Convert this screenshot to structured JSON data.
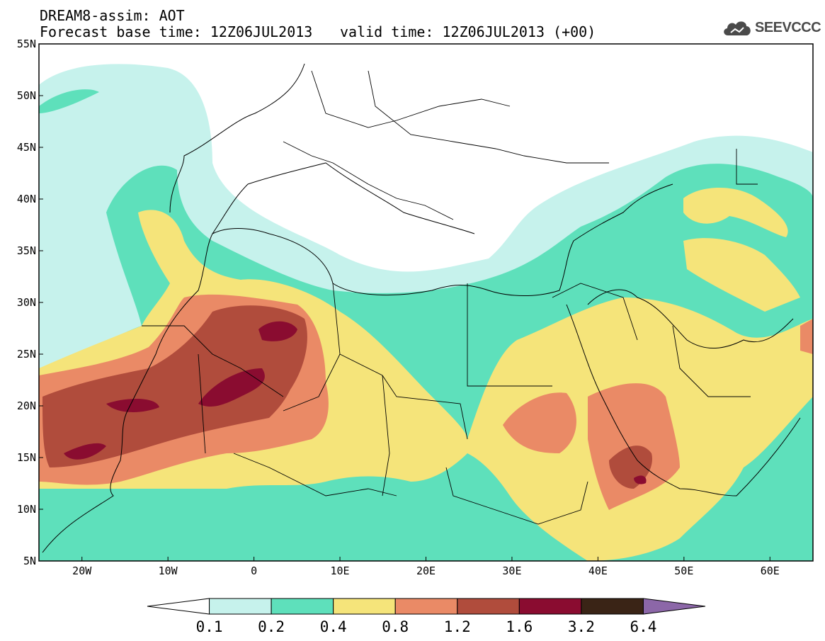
{
  "header": {
    "model_line": "DREAM8-assim: AOT",
    "base_time_line": "Forecast base time: 12Z06JUL2013",
    "valid_time_line": "valid time: 12Z06JUL2013 (+00)"
  },
  "logo": {
    "text": "SEEVCCC"
  },
  "map": {
    "lon_range": [
      -25,
      65
    ],
    "lat_range": [
      5,
      55
    ],
    "lat_labels": [
      "55N",
      "50N",
      "45N",
      "40N",
      "35N",
      "30N",
      "25N",
      "20N",
      "15N",
      "10N",
      "5N"
    ],
    "lon_labels": [
      "20W",
      "10W",
      "0",
      "10E",
      "20E",
      "30E",
      "40E",
      "50E",
      "60E"
    ]
  },
  "colorbar": {
    "labels": [
      "0.1",
      "0.2",
      "0.4",
      "0.8",
      "1.2",
      "1.6",
      "3.2",
      "6.4"
    ],
    "colors": [
      "#ffffff",
      "#c6f2ec",
      "#5ee0bb",
      "#f5e47a",
      "#ea8a66",
      "#b04c3c",
      "#8a0c30",
      "#3a2416",
      "#8c67a8"
    ]
  }
}
